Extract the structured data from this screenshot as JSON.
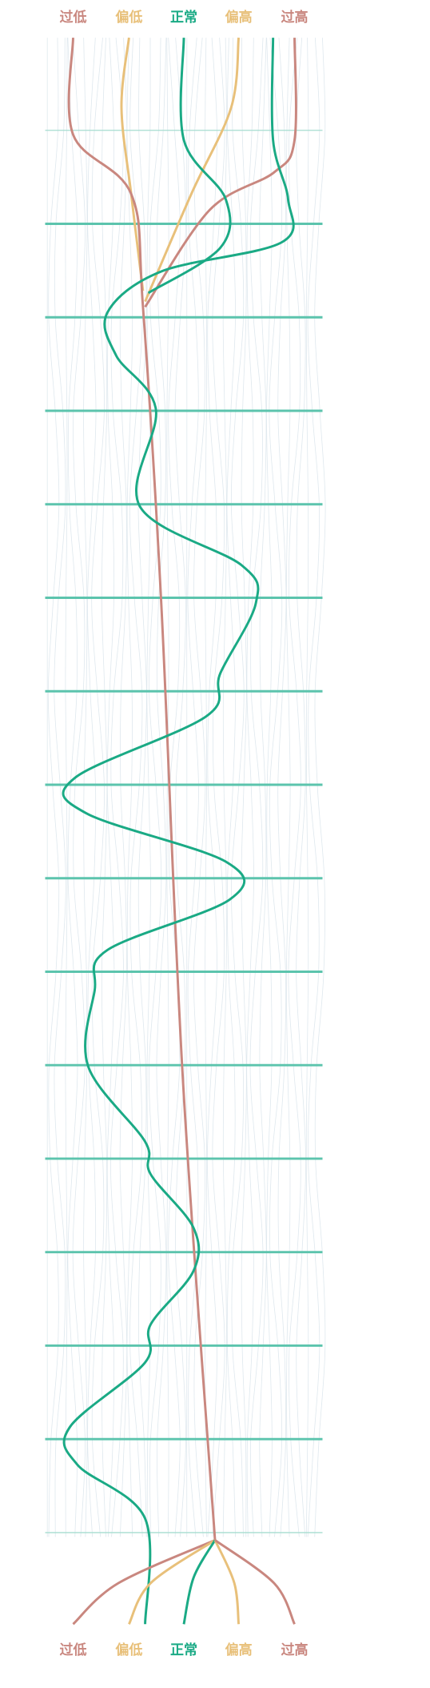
{
  "top_labels": [
    "过低",
    "偏低",
    "正常",
    "偏高",
    "过高"
  ],
  "bottom_labels": [
    "过低",
    "偏低",
    "正常",
    "偏高",
    "过高"
  ]
}
